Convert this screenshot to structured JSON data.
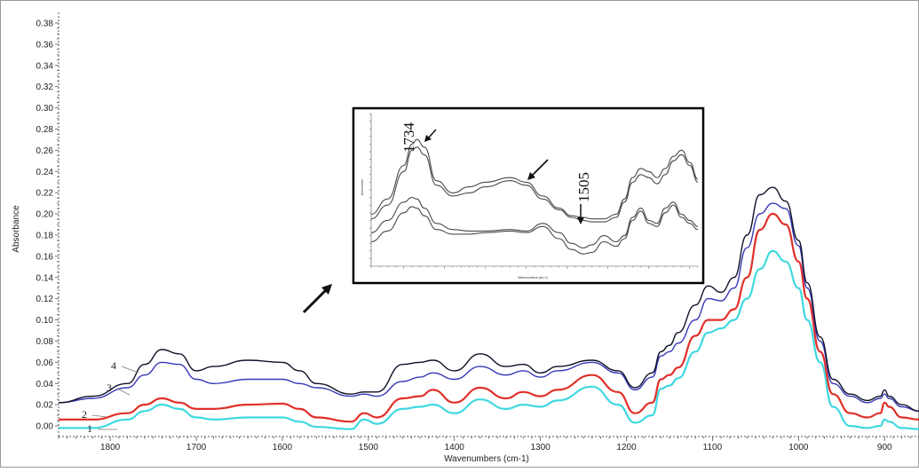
{
  "chart_data": {
    "type": "line",
    "xlabel": "Wavenumbers (cm-1)",
    "ylabel": "Absorbance",
    "xlim": [
      1860,
      860
    ],
    "ylim": [
      -0.01,
      0.39
    ],
    "x_reversed": true,
    "x_ticks": [
      1800,
      1700,
      1600,
      1500,
      1400,
      1300,
      1200,
      1100,
      1000,
      900
    ],
    "y_ticks": [
      0.0,
      0.02,
      0.04,
      0.06,
      0.08,
      0.1,
      0.12,
      0.14,
      0.16,
      0.18,
      0.2,
      0.22,
      0.24,
      0.26,
      0.28,
      0.3,
      0.32,
      0.34,
      0.36,
      0.38
    ],
    "colors": {
      "series_1": "#40d8e0",
      "series_2": "#e0302a",
      "series_3": "#3838b8",
      "series_4": "#101028",
      "axis": "#555555",
      "arrow": "#111111"
    },
    "series": [
      {
        "name": "1",
        "x": [
          1860,
          1820,
          1780,
          1760,
          1740,
          1720,
          1700,
          1680,
          1640,
          1600,
          1580,
          1560,
          1520,
          1505,
          1490,
          1460,
          1440,
          1425,
          1400,
          1370,
          1340,
          1320,
          1300,
          1280,
          1240,
          1210,
          1190,
          1170,
          1160,
          1150,
          1140,
          1120,
          1105,
          1090,
          1075,
          1060,
          1045,
          1030,
          1015,
          1000,
          990,
          975,
          960,
          940,
          920,
          905,
          900,
          895,
          880,
          860
        ],
        "y": [
          -0.002,
          -0.002,
          0.006,
          0.014,
          0.02,
          0.016,
          0.008,
          0.006,
          0.008,
          0.008,
          0.004,
          -0.001,
          -0.003,
          0.006,
          0.002,
          0.016,
          0.018,
          0.02,
          0.012,
          0.025,
          0.016,
          0.02,
          0.018,
          0.024,
          0.037,
          0.02,
          0.003,
          0.01,
          0.035,
          0.038,
          0.045,
          0.07,
          0.088,
          0.092,
          0.1,
          0.12,
          0.148,
          0.165,
          0.155,
          0.13,
          0.1,
          0.06,
          0.018,
          0.0,
          -0.002,
          0.0,
          0.006,
          0.004,
          -0.002,
          -0.003
        ]
      },
      {
        "name": "2",
        "x": [
          1860,
          1820,
          1780,
          1760,
          1740,
          1720,
          1700,
          1680,
          1640,
          1600,
          1580,
          1560,
          1520,
          1505,
          1490,
          1460,
          1440,
          1425,
          1400,
          1370,
          1340,
          1320,
          1300,
          1280,
          1240,
          1210,
          1190,
          1170,
          1160,
          1150,
          1140,
          1120,
          1105,
          1090,
          1075,
          1060,
          1045,
          1030,
          1015,
          1000,
          990,
          975,
          960,
          940,
          920,
          905,
          900,
          895,
          880,
          860
        ],
        "y": [
          0.006,
          0.006,
          0.012,
          0.02,
          0.026,
          0.022,
          0.016,
          0.016,
          0.02,
          0.021,
          0.016,
          0.008,
          0.004,
          0.012,
          0.008,
          0.026,
          0.028,
          0.034,
          0.022,
          0.036,
          0.026,
          0.032,
          0.028,
          0.034,
          0.048,
          0.032,
          0.012,
          0.022,
          0.044,
          0.048,
          0.055,
          0.085,
          0.1,
          0.1,
          0.11,
          0.14,
          0.185,
          0.2,
          0.19,
          0.155,
          0.12,
          0.07,
          0.03,
          0.012,
          0.008,
          0.012,
          0.022,
          0.018,
          0.008,
          0.006
        ]
      },
      {
        "name": "3",
        "x": [
          1860,
          1820,
          1780,
          1760,
          1740,
          1720,
          1700,
          1680,
          1640,
          1600,
          1580,
          1560,
          1520,
          1505,
          1490,
          1460,
          1440,
          1425,
          1400,
          1370,
          1340,
          1320,
          1300,
          1280,
          1240,
          1210,
          1190,
          1170,
          1160,
          1150,
          1140,
          1120,
          1105,
          1090,
          1075,
          1060,
          1045,
          1030,
          1015,
          1000,
          990,
          975,
          960,
          940,
          920,
          905,
          900,
          895,
          880,
          860
        ],
        "y": [
          0.022,
          0.026,
          0.036,
          0.048,
          0.06,
          0.058,
          0.044,
          0.04,
          0.044,
          0.044,
          0.04,
          0.036,
          0.028,
          0.03,
          0.028,
          0.042,
          0.046,
          0.05,
          0.044,
          0.056,
          0.048,
          0.052,
          0.046,
          0.052,
          0.06,
          0.05,
          0.034,
          0.046,
          0.066,
          0.07,
          0.078,
          0.1,
          0.12,
          0.118,
          0.13,
          0.168,
          0.2,
          0.21,
          0.205,
          0.17,
          0.13,
          0.08,
          0.04,
          0.028,
          0.022,
          0.026,
          0.03,
          0.026,
          0.018,
          0.014
        ]
      },
      {
        "name": "4",
        "x": [
          1860,
          1820,
          1780,
          1760,
          1740,
          1720,
          1700,
          1680,
          1640,
          1600,
          1580,
          1560,
          1520,
          1505,
          1490,
          1460,
          1440,
          1425,
          1400,
          1370,
          1340,
          1320,
          1300,
          1280,
          1240,
          1210,
          1190,
          1170,
          1160,
          1150,
          1140,
          1120,
          1105,
          1090,
          1075,
          1060,
          1045,
          1030,
          1015,
          1000,
          990,
          975,
          960,
          940,
          920,
          905,
          900,
          895,
          880,
          860
        ],
        "y": [
          0.022,
          0.028,
          0.04,
          0.058,
          0.072,
          0.068,
          0.052,
          0.056,
          0.062,
          0.06,
          0.052,
          0.04,
          0.03,
          0.032,
          0.032,
          0.058,
          0.06,
          0.062,
          0.052,
          0.068,
          0.056,
          0.058,
          0.05,
          0.056,
          0.062,
          0.052,
          0.036,
          0.05,
          0.07,
          0.076,
          0.088,
          0.114,
          0.132,
          0.126,
          0.14,
          0.18,
          0.218,
          0.225,
          0.212,
          0.175,
          0.135,
          0.084,
          0.044,
          0.03,
          0.024,
          0.028,
          0.034,
          0.028,
          0.02,
          0.014
        ]
      }
    ],
    "inset": {
      "xlabel": "Wavenumbers (cm-1)",
      "ylabel": "Absorbance",
      "xlim": [
        1790,
        1390
      ],
      "ylim": [
        0.0,
        1.0
      ],
      "peak_labels": [
        "1734",
        "1505"
      ],
      "series": [
        {
          "x": [
            1790,
            1770,
            1750,
            1740,
            1734,
            1725,
            1710,
            1690,
            1670,
            1650,
            1620,
            1600,
            1580,
            1560,
            1545,
            1530,
            1520,
            1505,
            1490,
            1480,
            1470,
            1460,
            1450,
            1440,
            1430,
            1420,
            1410,
            1400,
            1390
          ],
          "y": [
            0.34,
            0.44,
            0.66,
            0.8,
            0.83,
            0.78,
            0.56,
            0.48,
            0.52,
            0.55,
            0.58,
            0.55,
            0.46,
            0.38,
            0.33,
            0.32,
            0.31,
            0.31,
            0.34,
            0.44,
            0.58,
            0.64,
            0.62,
            0.58,
            0.64,
            0.72,
            0.76,
            0.68,
            0.57
          ]
        },
        {
          "x": [
            1790,
            1770,
            1750,
            1740,
            1734,
            1725,
            1710,
            1690,
            1670,
            1650,
            1620,
            1600,
            1580,
            1560,
            1545,
            1530,
            1520,
            1505,
            1490,
            1480,
            1470,
            1460,
            1450,
            1440,
            1430,
            1420,
            1410,
            1400,
            1390
          ],
          "y": [
            0.31,
            0.4,
            0.62,
            0.76,
            0.78,
            0.73,
            0.53,
            0.46,
            0.48,
            0.52,
            0.56,
            0.53,
            0.44,
            0.37,
            0.32,
            0.3,
            0.29,
            0.29,
            0.32,
            0.42,
            0.55,
            0.6,
            0.58,
            0.54,
            0.6,
            0.69,
            0.73,
            0.66,
            0.55
          ]
        },
        {
          "x": [
            1790,
            1770,
            1750,
            1740,
            1734,
            1725,
            1710,
            1690,
            1670,
            1650,
            1620,
            1600,
            1580,
            1560,
            1545,
            1530,
            1520,
            1505,
            1490,
            1480,
            1470,
            1460,
            1450,
            1440,
            1430,
            1420,
            1410,
            1400,
            1390
          ],
          "y": [
            0.22,
            0.3,
            0.42,
            0.45,
            0.44,
            0.38,
            0.28,
            0.24,
            0.23,
            0.23,
            0.24,
            0.23,
            0.28,
            0.22,
            0.15,
            0.12,
            0.14,
            0.2,
            0.16,
            0.2,
            0.32,
            0.38,
            0.3,
            0.28,
            0.38,
            0.42,
            0.34,
            0.3,
            0.26
          ]
        },
        {
          "x": [
            1790,
            1770,
            1750,
            1740,
            1734,
            1725,
            1710,
            1690,
            1670,
            1650,
            1620,
            1600,
            1580,
            1560,
            1545,
            1530,
            1520,
            1505,
            1490,
            1480,
            1470,
            1460,
            1450,
            1440,
            1430,
            1420,
            1410,
            1400,
            1390
          ],
          "y": [
            0.16,
            0.23,
            0.35,
            0.39,
            0.38,
            0.33,
            0.24,
            0.21,
            0.21,
            0.22,
            0.23,
            0.22,
            0.26,
            0.18,
            0.11,
            0.08,
            0.09,
            0.16,
            0.13,
            0.18,
            0.3,
            0.36,
            0.28,
            0.26,
            0.35,
            0.4,
            0.32,
            0.28,
            0.24
          ]
        }
      ]
    }
  }
}
